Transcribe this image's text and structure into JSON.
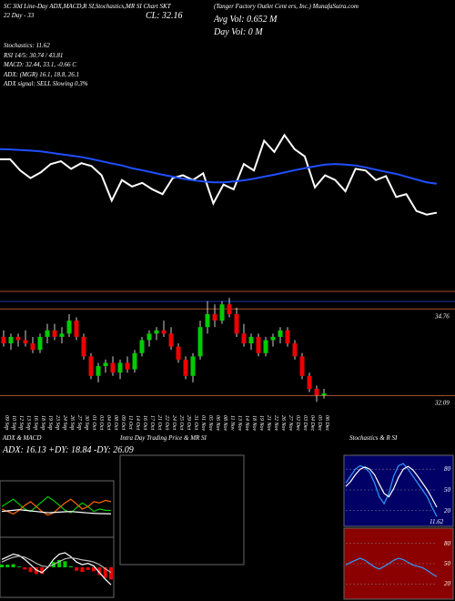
{
  "header": {
    "line1": "SC 30d Line-Day ADX,MACD,R SI,Stochastics,MR SI Chart SKT",
    "days": "22 Day - 33",
    "close": "CL: 32.16",
    "company": "(Tanger Factory Outlet Cent ers, Inc.) MunafaSutra.com",
    "avg_vol": "Avg Vol: 0.652 M",
    "day_vol": "Day Vol: 0 M",
    "stoch": "Stochastics: 11.62",
    "rsi": "RSI 14/5: 30.74 / 43.81",
    "macd": "MACD: 32.44, 33.1, -0.66 C",
    "adx": "ADX: (MGR) 16.1, 18.8, 26.1",
    "signal": "ADX signal: SELL Slowing 0.3%"
  },
  "chart_data": [
    {
      "type": "line",
      "ylim": [
        32.1,
        35.5
      ],
      "series": [
        {
          "color": "#ffffff",
          "values": [
            34.37,
            34.37,
            33.97,
            33.7,
            33.9,
            34.2,
            34.3,
            34.03,
            34.23,
            34.13,
            33.8,
            32.9,
            33.63,
            33.4,
            33.53,
            33.3,
            33.13,
            33.7,
            33.8,
            33.63,
            33.87,
            32.8,
            33.47,
            33.3,
            34.2,
            33.97,
            35.03,
            34.63,
            35.23,
            34.73,
            34.47,
            33.37,
            33.8,
            33.63,
            33.23,
            34.03,
            33.97,
            33.63,
            33.77,
            33.03,
            33.13,
            32.53,
            32.4,
            32.47
          ]
        },
        {
          "color": "#1f4fff",
          "values": [
            34.73,
            34.72,
            34.7,
            34.68,
            34.65,
            34.6,
            34.55,
            34.5,
            34.45,
            34.38,
            34.3,
            34.22,
            34.15,
            34.05,
            33.98,
            33.9,
            33.82,
            33.75,
            33.68,
            33.62,
            33.58,
            33.55,
            33.55,
            33.58,
            33.62,
            33.68,
            33.75,
            33.82,
            33.9,
            33.98,
            34.05,
            34.12,
            34.18,
            34.2,
            34.18,
            34.15,
            34.08,
            34.0,
            33.92,
            33.85,
            33.75,
            33.65,
            33.55,
            33.5
          ]
        }
      ]
    },
    {
      "type": "candlestick",
      "ylim": [
        31.6,
        35.3
      ],
      "categories": [
        "09 Sep",
        "10 Sep",
        "12 Sep",
        "13 Sep",
        "16 Sep",
        "18 Sep",
        "19 Sep",
        "23 Sep",
        "24 Sep",
        "26 Sep",
        "27 Sep",
        "30 Sep",
        "01 Oct",
        "03 Oct",
        "04 Oct",
        "08 Oct",
        "09 Oct",
        "11 Oct",
        "14 Oct",
        "16 Oct",
        "17 Oct",
        "21 Oct",
        "22 Oct",
        "24 Oct",
        "25 Oct",
        "29 Oct",
        "31 Oct",
        "01 Nov",
        "05 Nov",
        "06 Nov",
        "08 Nov",
        "11 Nov",
        "13 Nov",
        "14 Nov",
        "18 Nov",
        "19 Nov",
        "21 Nov",
        "22 Nov",
        "26 Nov",
        "27 Nov",
        "02 Dec",
        "03 Dec",
        "04 Dec",
        "05 Dec",
        "06 Dec"
      ],
      "candles": [
        [
          33.9,
          34.1,
          33.6,
          33.7
        ],
        [
          33.7,
          34.0,
          33.5,
          33.9
        ],
        [
          33.9,
          34.0,
          33.6,
          33.8
        ],
        [
          33.8,
          34.1,
          33.6,
          33.7
        ],
        [
          33.7,
          33.9,
          33.4,
          33.5
        ],
        [
          33.5,
          34.0,
          33.4,
          33.9
        ],
        [
          33.9,
          34.3,
          33.7,
          34.1
        ],
        [
          34.1,
          34.3,
          33.8,
          33.9
        ],
        [
          33.9,
          34.2,
          33.7,
          34.0
        ],
        [
          34.0,
          34.6,
          33.9,
          34.4
        ],
        [
          34.4,
          34.5,
          33.8,
          33.9
        ],
        [
          33.9,
          34.0,
          33.2,
          33.3
        ],
        [
          33.3,
          33.4,
          32.6,
          32.7
        ],
        [
          32.7,
          33.1,
          32.5,
          33.0
        ],
        [
          33.0,
          33.2,
          32.8,
          33.1
        ],
        [
          33.1,
          33.3,
          32.7,
          32.8
        ],
        [
          32.8,
          33.2,
          32.6,
          33.1
        ],
        [
          33.1,
          33.3,
          32.8,
          32.9
        ],
        [
          32.9,
          33.5,
          32.8,
          33.4
        ],
        [
          33.4,
          33.9,
          33.3,
          33.8
        ],
        [
          33.8,
          34.1,
          33.6,
          34.0
        ],
        [
          34.0,
          34.2,
          33.8,
          34.1
        ],
        [
          34.1,
          34.4,
          33.9,
          34.0
        ],
        [
          34.0,
          34.2,
          33.5,
          33.6
        ],
        [
          33.6,
          33.7,
          33.1,
          33.2
        ],
        [
          33.2,
          33.3,
          32.6,
          32.7
        ],
        [
          32.7,
          33.4,
          32.5,
          33.3
        ],
        [
          33.3,
          34.4,
          33.2,
          34.2
        ],
        [
          34.2,
          35.0,
          34.0,
          34.6
        ],
        [
          34.6,
          34.9,
          34.2,
          34.4
        ],
        [
          34.4,
          35.0,
          34.3,
          34.9
        ],
        [
          34.9,
          35.1,
          34.5,
          34.6
        ],
        [
          34.6,
          34.8,
          33.9,
          34.0
        ],
        [
          34.0,
          34.3,
          33.6,
          33.7
        ],
        [
          33.7,
          34.0,
          33.5,
          33.9
        ],
        [
          33.9,
          34.0,
          33.3,
          33.4
        ],
        [
          33.4,
          33.9,
          33.3,
          33.8
        ],
        [
          33.8,
          34.0,
          33.6,
          33.9
        ],
        [
          33.9,
          34.2,
          33.7,
          34.1
        ],
        [
          34.1,
          34.2,
          33.6,
          33.7
        ],
        [
          33.7,
          33.8,
          33.2,
          33.3
        ],
        [
          33.3,
          33.4,
          32.6,
          32.7
        ],
        [
          32.7,
          32.8,
          32.2,
          32.3
        ],
        [
          32.3,
          32.4,
          31.9,
          32.1
        ],
        [
          32.1,
          32.3,
          32.0,
          32.16
        ]
      ],
      "up_color": "#00cc00",
      "down_color": "#ee0000",
      "levels": [
        {
          "value": 34.76,
          "label": "34.76"
        },
        {
          "value": 32.09,
          "label": "32.09"
        }
      ]
    },
    {
      "type": "line",
      "title": "ADX & MACD",
      "subtitle": "ADX: 16.13 +DY: 18.84 -DY: 26.09",
      "ylim": [
        0,
        40
      ],
      "series": [
        {
          "color": "#00cc00",
          "values": [
            22,
            25,
            28,
            24,
            20,
            18,
            22,
            26,
            30,
            27,
            23,
            19,
            17,
            21,
            25,
            22,
            18,
            20,
            19,
            18.84
          ]
        },
        {
          "color": "#ff6600",
          "values": [
            20,
            18,
            16,
            19,
            23,
            26,
            22,
            18,
            15,
            17,
            21,
            25,
            28,
            24,
            20,
            22,
            26,
            25,
            27,
            26.09
          ]
        },
        {
          "color": "#ffffff",
          "values": [
            18,
            18.5,
            19,
            19.5,
            19,
            18.5,
            18,
            17.5,
            17,
            17.2,
            17.5,
            17.8,
            18,
            17.6,
            17.2,
            16.8,
            16.5,
            16.3,
            16.2,
            16.13
          ]
        }
      ]
    },
    {
      "type": "macd",
      "ylim": [
        -1,
        1
      ],
      "up_color": "#00cc00",
      "down_color": "#ee0000",
      "histogram": [
        0.1,
        0.1,
        0.12,
        0.03,
        -0.08,
        -0.18,
        -0.25,
        -0.25,
        -0.02,
        0.2,
        0.28,
        0.23,
        0.04,
        -0.13,
        -0.18,
        -0.1,
        -0.15,
        -0.3,
        -0.4,
        -0.46
      ],
      "series": [
        {
          "color": "#ffffff",
          "values": [
            0.3,
            0.4,
            0.5,
            0.45,
            0.3,
            0.1,
            -0.1,
            -0.2,
            0,
            0.3,
            0.5,
            0.55,
            0.4,
            0.2,
            0.1,
            0.15,
            0.05,
            -0.2,
            -0.45,
            -0.66
          ]
        },
        {
          "color": "#bbbbbb",
          "values": [
            0.2,
            0.3,
            0.38,
            0.42,
            0.38,
            0.28,
            0.15,
            0.05,
            0.02,
            0.1,
            0.22,
            0.32,
            0.36,
            0.33,
            0.28,
            0.25,
            0.2,
            0.1,
            -0.05,
            -0.2
          ]
        }
      ]
    },
    {
      "type": "line",
      "title": "Stochastics & R SI",
      "annotation": "11.62",
      "background": "#000066",
      "ylim": [
        0,
        100
      ],
      "yticks": [
        20,
        50,
        80
      ],
      "series": [
        {
          "color": "#3399ff",
          "values": [
            60,
            70,
            80,
            85,
            82,
            75,
            60,
            40,
            30,
            45,
            70,
            85,
            88,
            80,
            70,
            60,
            50,
            40,
            25,
            11.62
          ]
        },
        {
          "color": "#ffffff",
          "values": [
            55,
            62,
            72,
            80,
            83,
            80,
            72,
            58,
            45,
            40,
            52,
            68,
            80,
            84,
            79,
            70,
            60,
            50,
            38,
            25
          ]
        }
      ]
    },
    {
      "type": "line",
      "background": "#8b0000",
      "ylim": [
        0,
        100
      ],
      "yticks": [
        20,
        50,
        80
      ],
      "series": [
        {
          "color": "#3399ff",
          "values": [
            48,
            52,
            55,
            58,
            55,
            50,
            45,
            42,
            46,
            50,
            55,
            58,
            56,
            52,
            48,
            46,
            44,
            40,
            35,
            30.74
          ]
        }
      ]
    },
    {
      "type": "box",
      "title": "Intra Day Trading Price & MR SI"
    }
  ]
}
